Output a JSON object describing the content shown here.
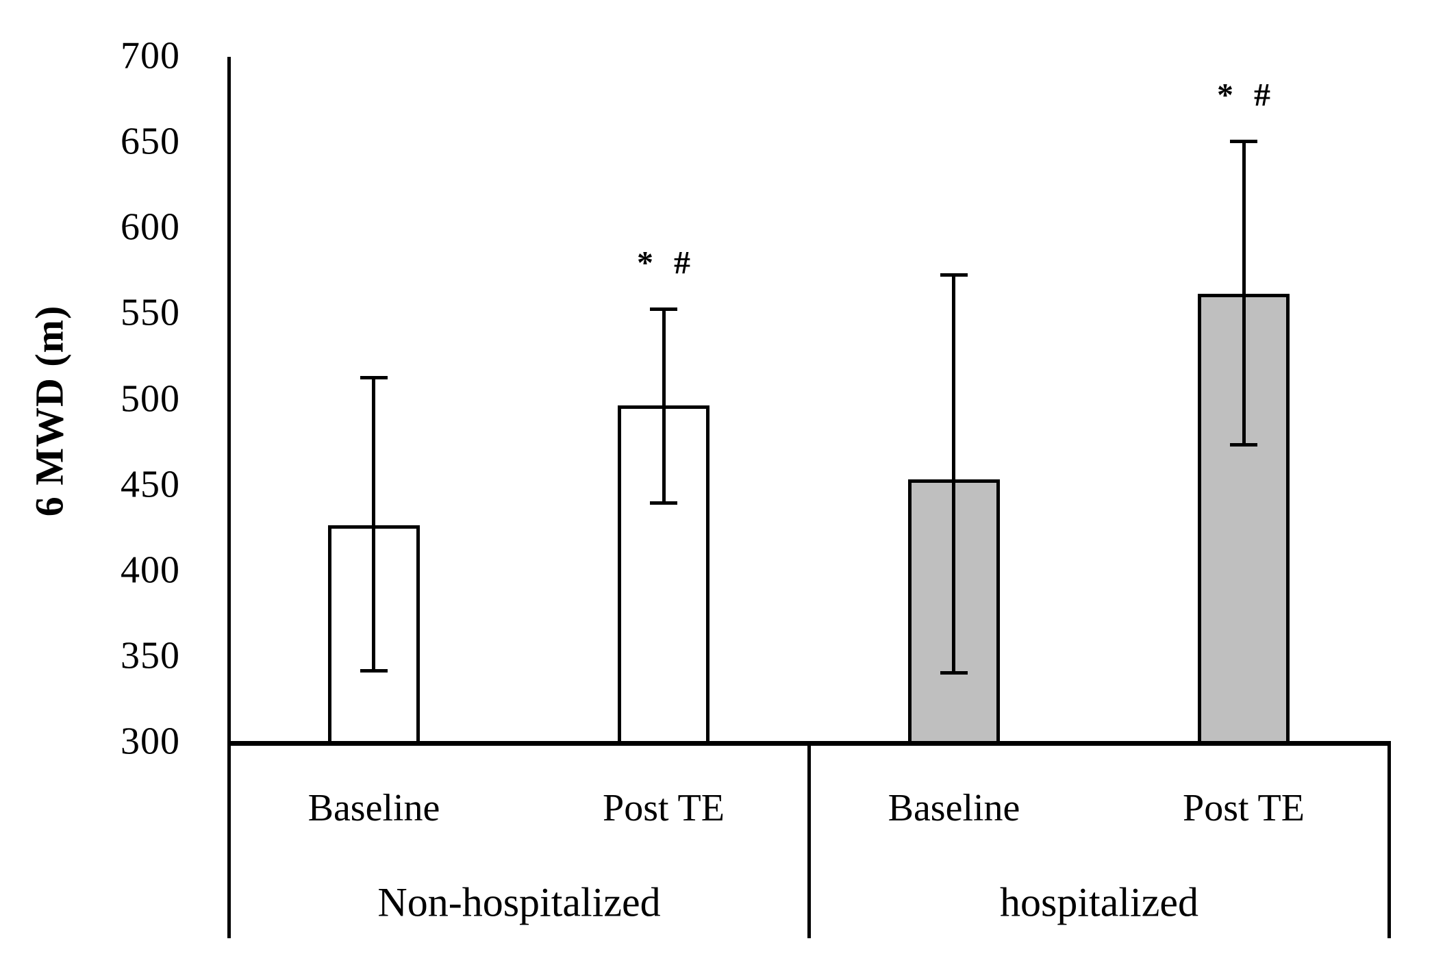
{
  "figure": {
    "background_color": "#FFFFFF",
    "line_color": "#000000",
    "bar_outline_color": "#000000",
    "white_bar_fill": "#FFFFFF",
    "gray_bar_fill": "#BFBFBF"
  },
  "chart_data": {
    "type": "bar",
    "title": "",
    "ylabel": "6 MWD (m)",
    "xlabel": "",
    "ylim": [
      300,
      700
    ],
    "ytick_interval": 50,
    "yticks": [
      700,
      650,
      600,
      550,
      500,
      450,
      400,
      350,
      300
    ],
    "grid": false,
    "legend": null,
    "error_bars": true,
    "groups": [
      {
        "label": "Non-hospitalized",
        "fill": "#FFFFFF",
        "bars": [
          {
            "category": "Baseline",
            "value": 427,
            "err_low": 342,
            "err_high": 513,
            "annotation": ""
          },
          {
            "category": "Post TE",
            "value": 497,
            "err_low": 440,
            "err_high": 553,
            "annotation": "* #"
          }
        ]
      },
      {
        "label": "hospitalized",
        "fill": "#BFBFBF",
        "bars": [
          {
            "category": "Baseline",
            "value": 454,
            "err_low": 341,
            "err_high": 573,
            "annotation": ""
          },
          {
            "category": "Post TE",
            "value": 562,
            "err_low": 474,
            "err_high": 651,
            "annotation": "* #"
          }
        ]
      }
    ]
  }
}
